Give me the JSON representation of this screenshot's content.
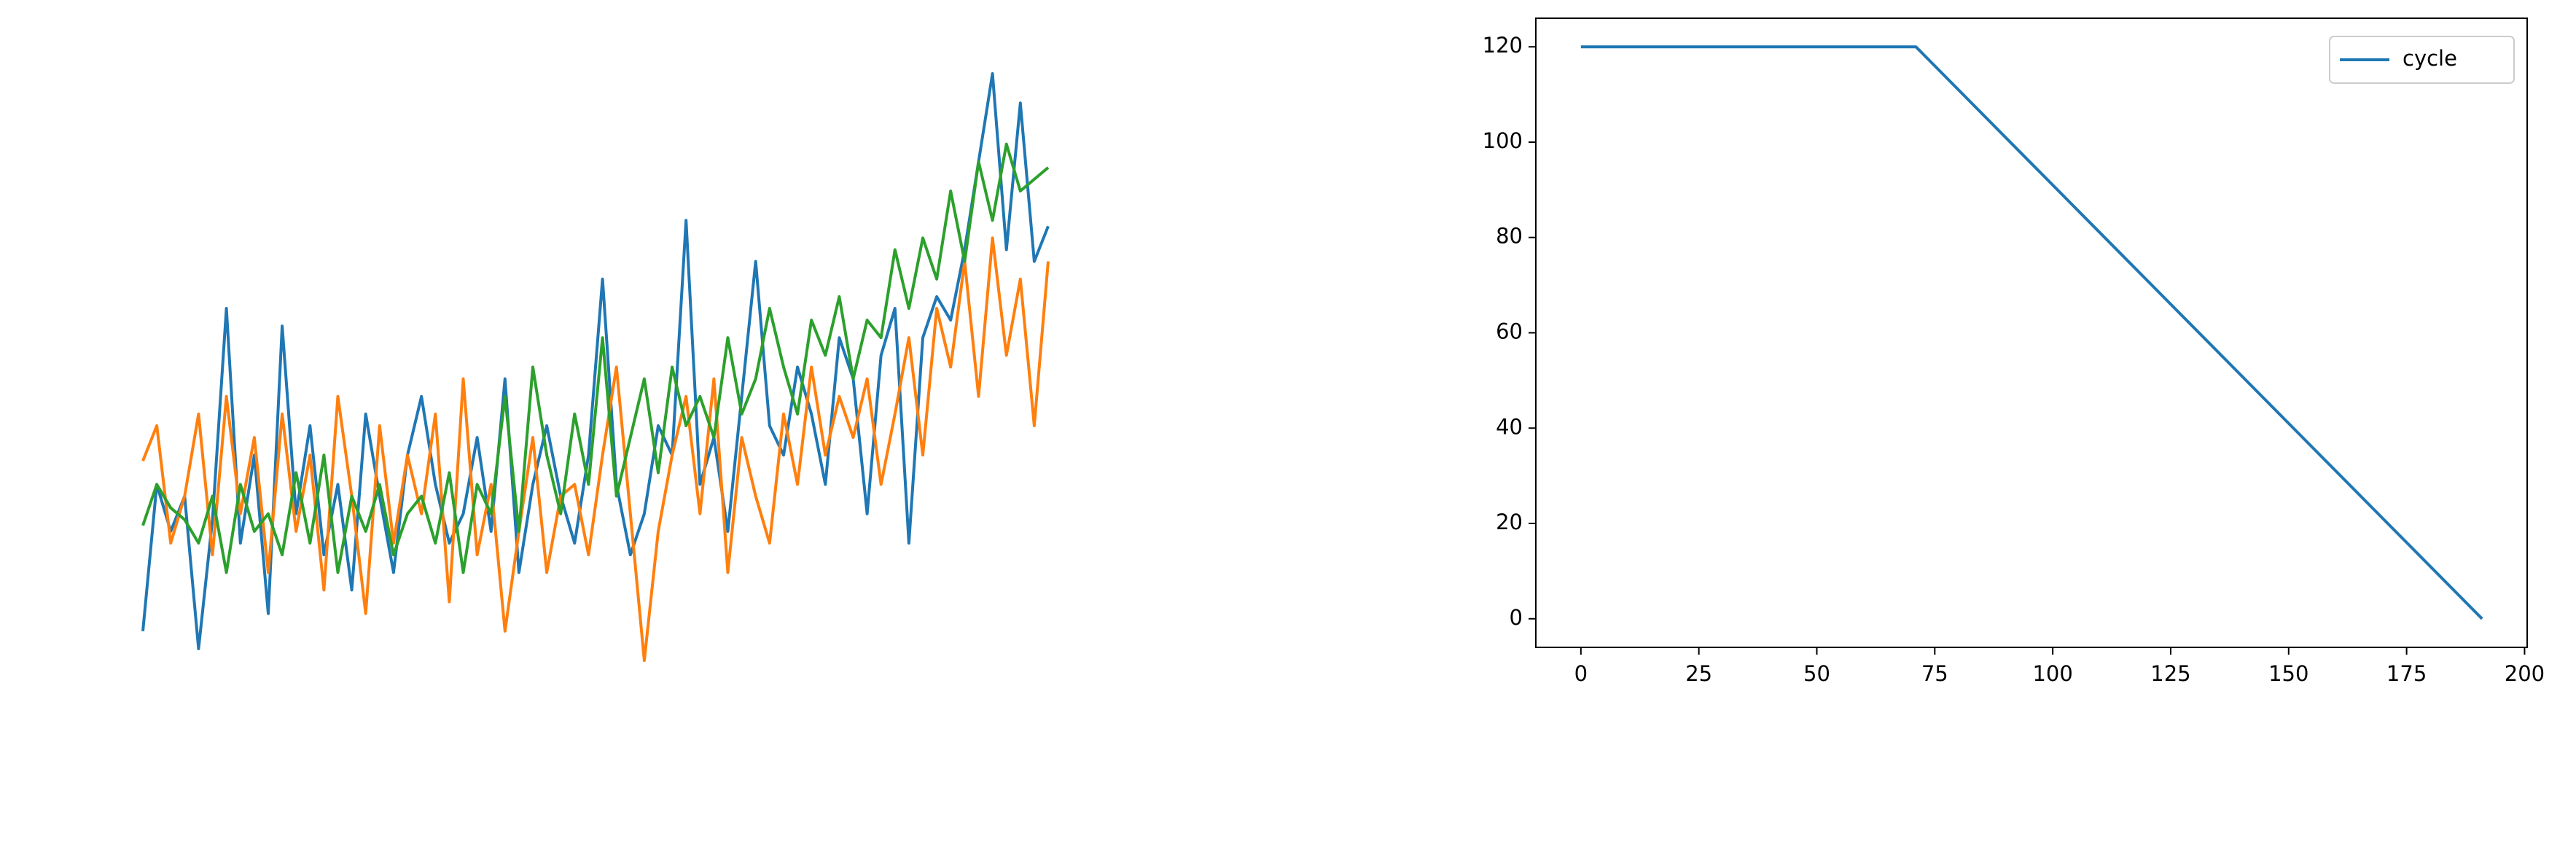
{
  "chart_data": [
    {
      "type": "line",
      "axes": false,
      "series": [
        {
          "color": "#1f77b4",
          "values": [
            5,
            30,
            22,
            28,
            2,
            24,
            60,
            20,
            35,
            8,
            57,
            25,
            40,
            18,
            30,
            12,
            42,
            28,
            15,
            35,
            45,
            30,
            20,
            25,
            38,
            22,
            48,
            15,
            30,
            40,
            28,
            20,
            35,
            65,
            30,
            18,
            25,
            40,
            35,
            75,
            30,
            38,
            22,
            45,
            68,
            40,
            35,
            50,
            42,
            30,
            55,
            48,
            25,
            52,
            60,
            20,
            55,
            62,
            58,
            70,
            85,
            100,
            70,
            95,
            68,
            74
          ]
        },
        {
          "color": "#ff7f0e",
          "values": [
            34,
            40,
            20,
            28,
            42,
            18,
            45,
            25,
            38,
            15,
            42,
            22,
            35,
            12,
            45,
            28,
            8,
            40,
            20,
            35,
            25,
            42,
            10,
            48,
            18,
            30,
            5,
            22,
            38,
            15,
            28,
            30,
            18,
            35,
            50,
            25,
            0,
            22,
            35,
            45,
            25,
            48,
            15,
            38,
            28,
            20,
            42,
            30,
            50,
            35,
            45,
            38,
            48,
            30,
            42,
            55,
            35,
            60,
            50,
            68,
            45,
            72,
            52,
            65,
            40,
            68
          ]
        },
        {
          "color": "#2ca02c",
          "values": [
            23,
            30,
            26,
            24,
            20,
            28,
            15,
            30,
            22,
            25,
            18,
            32,
            20,
            35,
            15,
            28,
            22,
            30,
            18,
            25,
            28,
            20,
            32,
            15,
            30,
            25,
            45,
            22,
            50,
            35,
            25,
            42,
            30,
            55,
            28,
            38,
            48,
            32,
            50,
            40,
            45,
            38,
            55,
            42,
            48,
            60,
            50,
            42,
            58,
            52,
            62,
            48,
            58,
            55,
            70,
            60,
            72,
            65,
            80,
            68,
            85,
            75,
            88,
            80,
            82,
            84
          ]
        }
      ]
    },
    {
      "type": "line",
      "axes": true,
      "legend": "upper right",
      "x": [
        0,
        71,
        191
      ],
      "series": [
        {
          "name": "cycle",
          "color": "#1f77b4",
          "values": [
            120,
            120,
            0
          ]
        }
      ],
      "xlim": [
        -9.55,
        200.55
      ],
      "xticks": [
        0,
        25,
        50,
        75,
        100,
        125,
        150,
        175,
        200
      ],
      "ylim": [
        -6,
        126
      ],
      "yticks": [
        0,
        20,
        40,
        60,
        80,
        100,
        120
      ]
    }
  ]
}
